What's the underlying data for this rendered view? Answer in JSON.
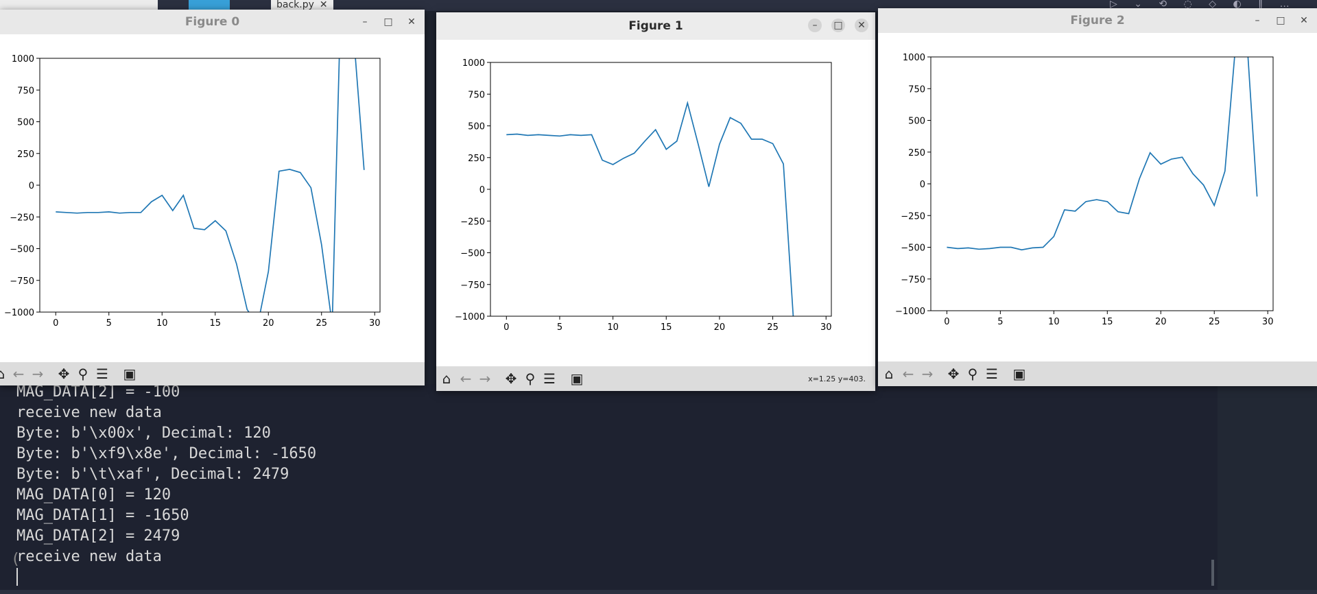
{
  "editor": {
    "tab_label": "back.py",
    "tab_close": "✕",
    "run_icons": "▷ ⌄ ⟲ ◌ ◇ ◐ ‖ …"
  },
  "terminal": {
    "lines": [
      "MAG_DATA[2] = -100",
      "receive new data",
      "Byte: b'\\x00x', Decimal: 120",
      "Byte: b'\\xf9\\x8e', Decimal: -1650",
      "Byte: b'\\t\\xaf', Decimal: 2479",
      "MAG_DATA[0] = 120",
      "MAG_DATA[1] = -1650",
      "MAG_DATA[2] = 2479",
      "receive new data"
    ],
    "paren": "("
  },
  "figures": [
    {
      "title": "Figure 0",
      "status": ""
    },
    {
      "title": "Figure 1",
      "status": "x=1.25 y=403."
    },
    {
      "title": "Figure 2",
      "status": ""
    }
  ],
  "toolbar_icons": [
    "home-icon",
    "back-arrow-icon",
    "forward-arrow-icon",
    "pan-icon",
    "zoom-icon",
    "configure-icon",
    "save-icon"
  ],
  "window_buttons": {
    "minimize": "–",
    "maximize": "□",
    "close": "✕"
  },
  "chart_data": [
    {
      "type": "line",
      "title": "",
      "xlim": [
        -1.5,
        30.5
      ],
      "ylim": [
        -1000,
        1000
      ],
      "xticks": [
        "0",
        "5",
        "10",
        "15",
        "20",
        "25",
        "30"
      ],
      "yticks": [
        "1000",
        "750",
        "500",
        "250",
        "0",
        "−250",
        "−500",
        "−750",
        "−1000"
      ],
      "color": "#1f77b4",
      "x": [
        0,
        1,
        2,
        3,
        4,
        5,
        6,
        7,
        8,
        9,
        10,
        11,
        12,
        13,
        14,
        15,
        16,
        17,
        18,
        19,
        20,
        21,
        22,
        23,
        24,
        25,
        26,
        26.3,
        26.7,
        27,
        28,
        29
      ],
      "y": [
        -210,
        -215,
        -220,
        -215,
        -215,
        -210,
        -220,
        -215,
        -215,
        -130,
        -80,
        -200,
        -80,
        -340,
        -350,
        -280,
        -360,
        -620,
        -980,
        -1100,
        -680,
        110,
        125,
        100,
        -20,
        -470,
        -1100,
        -150,
        1100,
        1300,
        1200,
        120
      ]
    },
    {
      "type": "line",
      "title": "",
      "xlim": [
        -1.5,
        30.5
      ],
      "ylim": [
        -1000,
        1000
      ],
      "xticks": [
        "0",
        "5",
        "10",
        "15",
        "20",
        "25",
        "30"
      ],
      "yticks": [
        "1000",
        "750",
        "500",
        "250",
        "0",
        "−250",
        "−500",
        "−750",
        "−1000"
      ],
      "color": "#1f77b4",
      "x": [
        0,
        1,
        2,
        3,
        4,
        5,
        6,
        7,
        8,
        9,
        10,
        11,
        12,
        13,
        14,
        15,
        16,
        17,
        18,
        19,
        20,
        21,
        22,
        23,
        24,
        25,
        26,
        27
      ],
      "y": [
        430,
        435,
        425,
        430,
        425,
        420,
        430,
        425,
        430,
        230,
        195,
        245,
        285,
        380,
        470,
        315,
        380,
        680,
        355,
        20,
        355,
        565,
        520,
        395,
        395,
        360,
        200,
        -1100
      ]
    },
    {
      "type": "line",
      "title": "",
      "xlim": [
        -1.5,
        30.5
      ],
      "ylim": [
        -1000,
        1000
      ],
      "xticks": [
        "0",
        "5",
        "10",
        "15",
        "20",
        "25",
        "30"
      ],
      "yticks": [
        "1000",
        "750",
        "500",
        "250",
        "0",
        "−250",
        "−500",
        "−750",
        "−1000"
      ],
      "color": "#1f77b4",
      "x": [
        0,
        1,
        2,
        3,
        4,
        5,
        6,
        7,
        8,
        9,
        10,
        11,
        12,
        13,
        14,
        15,
        16,
        17,
        18,
        19,
        20,
        21,
        22,
        23,
        24,
        25,
        26,
        27,
        28,
        29
      ],
      "y": [
        -500,
        -510,
        -505,
        -515,
        -510,
        -500,
        -500,
        -520,
        -505,
        -500,
        -415,
        -205,
        -215,
        -140,
        -125,
        -140,
        -220,
        -235,
        40,
        245,
        155,
        195,
        210,
        80,
        -10,
        -170,
        100,
        1100,
        1200,
        -100
      ]
    }
  ]
}
